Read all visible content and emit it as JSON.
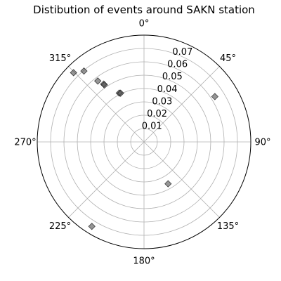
{
  "chart_data": {
    "type": "scatter",
    "projection": "polar",
    "title": "Distibution of events around SAKN station",
    "theta_zero": "N",
    "theta_direction": "clockwise",
    "angle_ticks": [
      "0°",
      "45°",
      "90°",
      "135°",
      "180°",
      "225°",
      "270°",
      "315°"
    ],
    "radial_ticks": [
      "0.01",
      "0.02",
      "0.03",
      "0.04",
      "0.05",
      "0.06",
      "0.07"
    ],
    "radial_tick_values": [
      0.01,
      0.02,
      0.03,
      0.04,
      0.05,
      0.06,
      0.07
    ],
    "rlim": [
      0,
      0.08
    ],
    "grid": true,
    "marker": "diamond",
    "marker_color": "#404040",
    "marker_alpha": 0.55,
    "points": [
      {
        "theta_deg": 322.8,
        "r": 0.0573
      },
      {
        "theta_deg": 325.1,
        "r": 0.0528
      },
      {
        "theta_deg": 325.2,
        "r": 0.052
      },
      {
        "theta_deg": 333.1,
        "r": 0.041
      },
      {
        "theta_deg": 334.3,
        "r": 0.0405
      },
      {
        "theta_deg": 314.5,
        "r": 0.074
      },
      {
        "theta_deg": 319.7,
        "r": 0.0696
      },
      {
        "theta_deg": 57.4,
        "r": 0.063
      },
      {
        "theta_deg": 150.1,
        "r": 0.0362
      },
      {
        "theta_deg": 211.7,
        "r": 0.0744
      }
    ]
  }
}
